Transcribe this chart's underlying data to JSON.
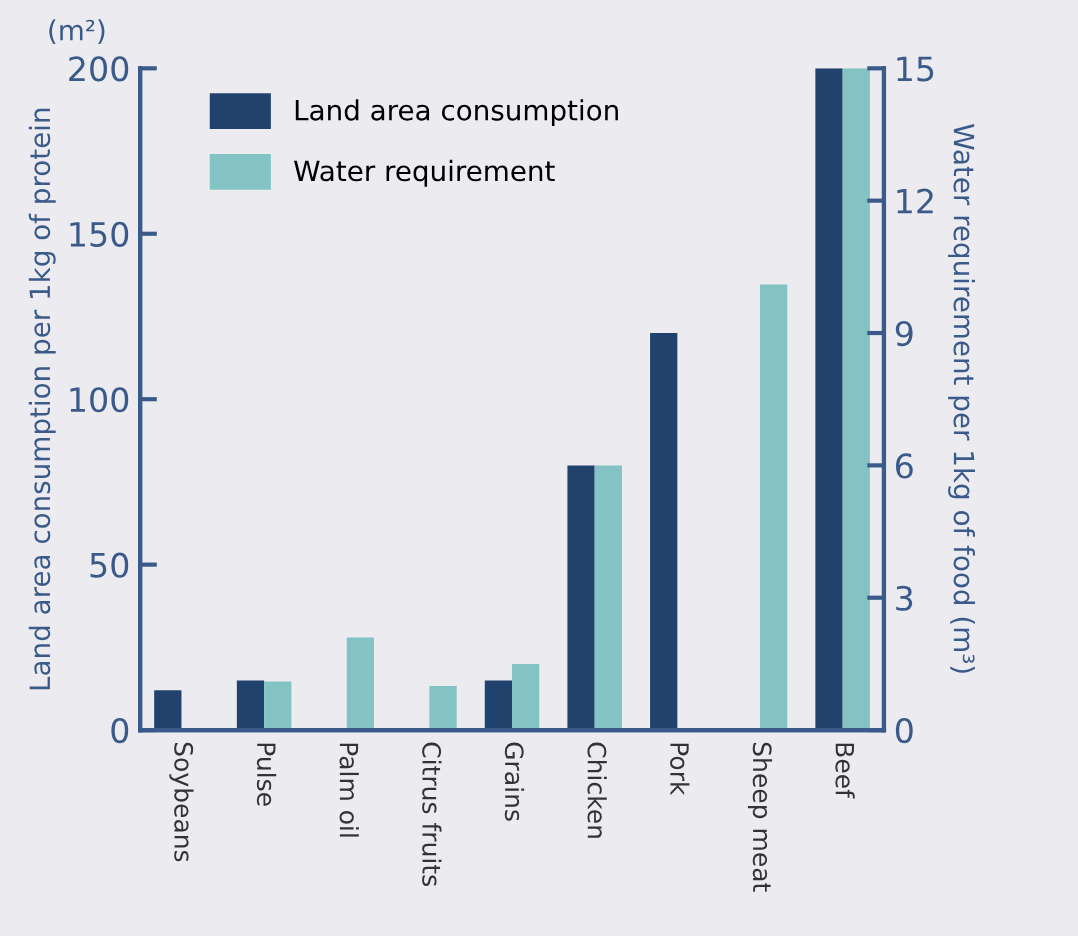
{
  "chart_data": {
    "type": "bar",
    "categories": [
      "Soybeans",
      "Pulse",
      "Palm oil",
      "Citrus fruits",
      "Grains",
      "Chicken",
      "Pork",
      "Sheep meat",
      "Beef"
    ],
    "series": [
      {
        "name": "Land area consumption",
        "color": "#22426e",
        "values": [
          12,
          15,
          null,
          null,
          15,
          80,
          120,
          null,
          200
        ]
      },
      {
        "name": "Water requirement",
        "color": "#84c3c3",
        "axis": "y2",
        "values": [
          null,
          1.1,
          2.1,
          1.0,
          1.5,
          6,
          null,
          10.1,
          15
        ]
      }
    ],
    "ylabel": "Land area consumption per 1kg of protein",
    "y2label": "Water requirement per 1kg of food (m³)",
    "annotations": [
      "(m²)"
    ],
    "ylim": [
      0,
      200
    ],
    "yticks": [
      0,
      50,
      100,
      150,
      200
    ],
    "y2lim": [
      0,
      15
    ],
    "y2ticks": [
      0,
      3,
      6,
      9,
      12,
      15
    ],
    "legend": "top left",
    "grid": false
  }
}
